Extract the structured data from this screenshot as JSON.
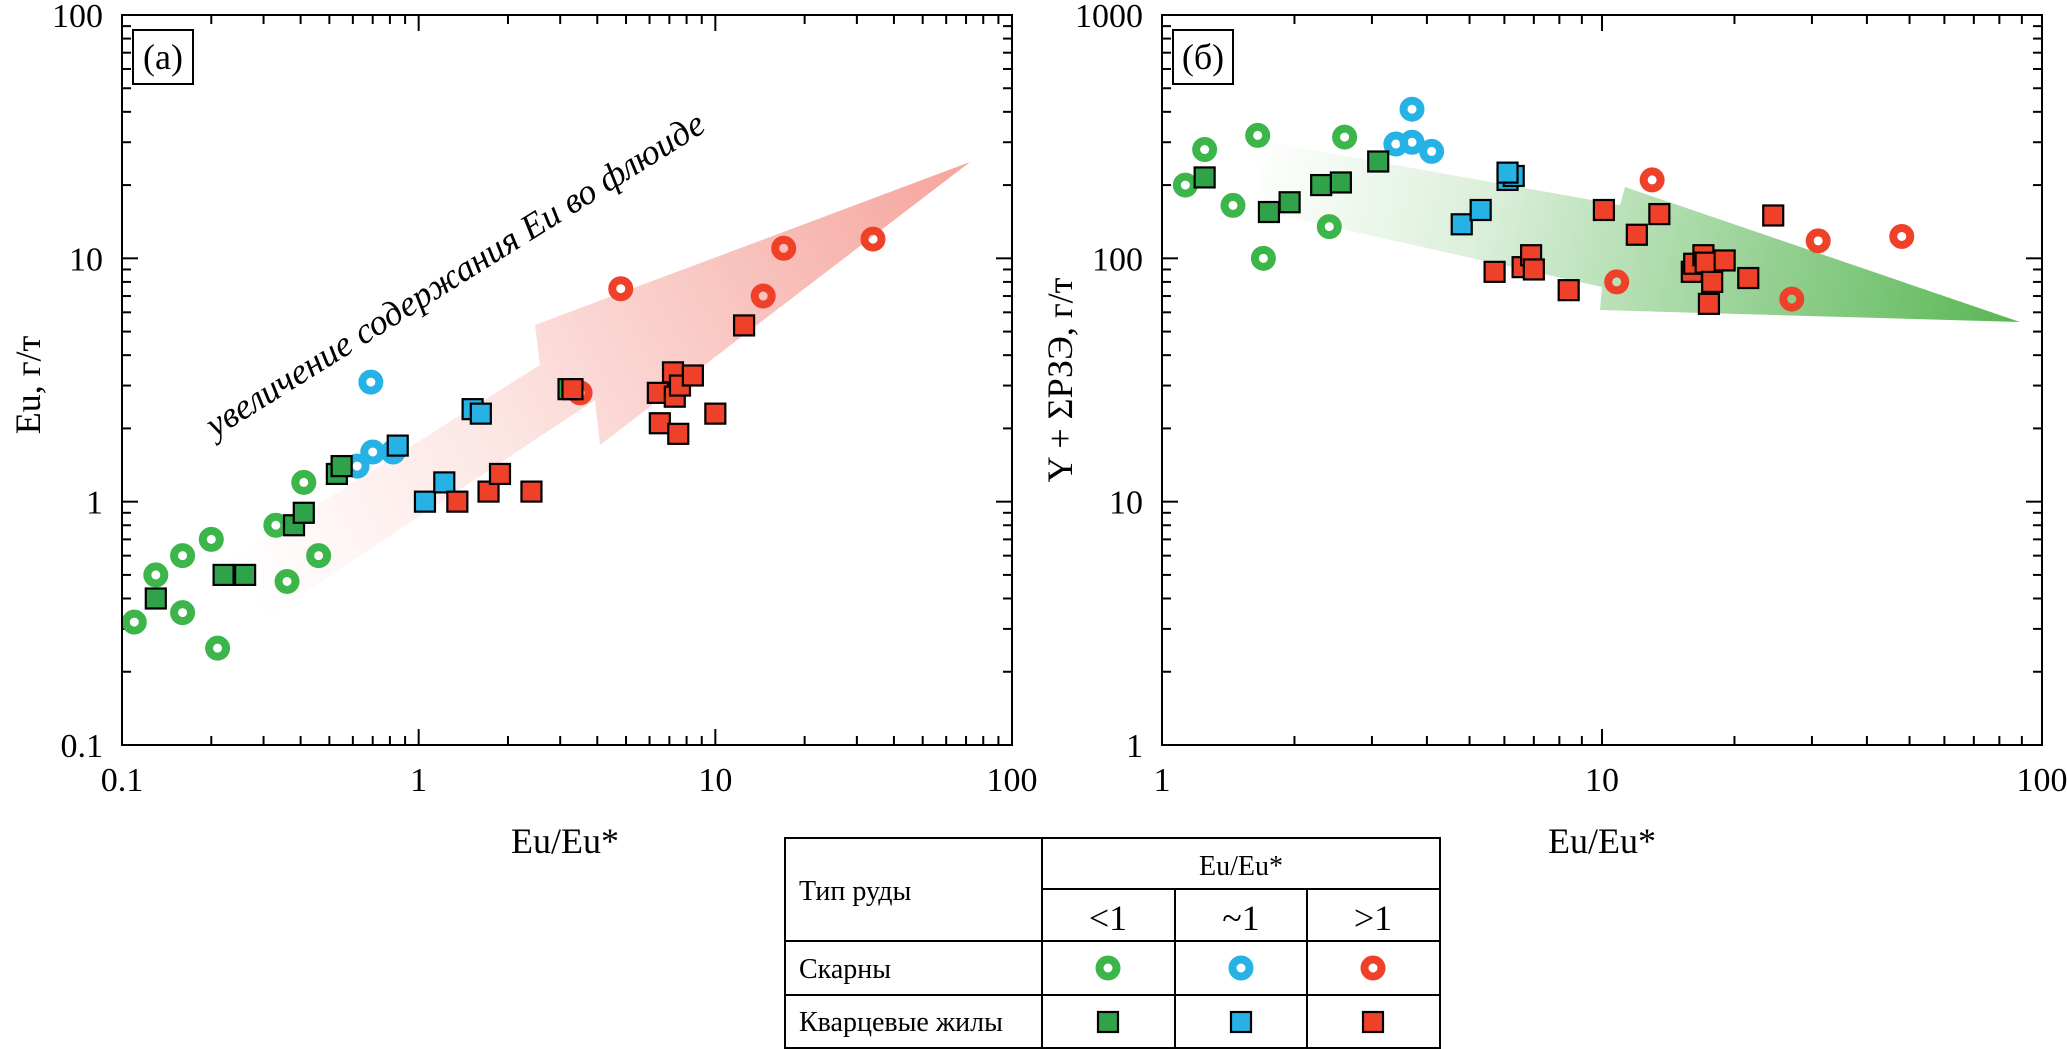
{
  "chart_data": [
    {
      "panel": "(а)",
      "type": "scatter",
      "xlabel": "Eu/Eu*",
      "ylabel": "Eu, г/т",
      "xscale": "log",
      "yscale": "log",
      "xlim": [
        0.1,
        100
      ],
      "ylim": [
        0.1,
        100
      ],
      "x_ticks": [
        "0.1",
        "1",
        "10",
        "100"
      ],
      "y_ticks": [
        "0.1",
        "1",
        "10",
        "100"
      ],
      "annotation": "увеличение содержания Eu во флюиде",
      "points": [
        {
          "x": 0.11,
          "y": 0.32,
          "g": "skarn-lt1"
        },
        {
          "x": 0.13,
          "y": 0.5,
          "g": "skarn-lt1"
        },
        {
          "x": 0.16,
          "y": 0.6,
          "g": "skarn-lt1"
        },
        {
          "x": 0.16,
          "y": 0.35,
          "g": "skarn-lt1"
        },
        {
          "x": 0.2,
          "y": 0.7,
          "g": "skarn-lt1"
        },
        {
          "x": 0.21,
          "y": 0.25,
          "g": "skarn-lt1"
        },
        {
          "x": 0.33,
          "y": 0.8,
          "g": "skarn-lt1"
        },
        {
          "x": 0.36,
          "y": 0.47,
          "g": "skarn-lt1"
        },
        {
          "x": 0.41,
          "y": 1.2,
          "g": "skarn-lt1"
        },
        {
          "x": 0.46,
          "y": 0.6,
          "g": "skarn-lt1"
        },
        {
          "x": 0.69,
          "y": 3.1,
          "g": "skarn-1"
        },
        {
          "x": 0.62,
          "y": 1.4,
          "g": "skarn-1"
        },
        {
          "x": 0.7,
          "y": 1.6,
          "g": "skarn-1"
        },
        {
          "x": 0.82,
          "y": 1.6,
          "g": "skarn-1"
        },
        {
          "x": 3.5,
          "y": 2.8,
          "g": "skarn-gt1"
        },
        {
          "x": 4.8,
          "y": 7.5,
          "g": "skarn-gt1"
        },
        {
          "x": 14.5,
          "y": 7,
          "g": "skarn-gt1"
        },
        {
          "x": 17,
          "y": 11,
          "g": "skarn-gt1"
        },
        {
          "x": 34,
          "y": 12,
          "g": "skarn-gt1"
        },
        {
          "x": 0.13,
          "y": 0.4,
          "g": "vein-lt1"
        },
        {
          "x": 0.22,
          "y": 0.5,
          "g": "vein-lt1"
        },
        {
          "x": 0.26,
          "y": 0.5,
          "g": "vein-lt1"
        },
        {
          "x": 0.38,
          "y": 0.8,
          "g": "vein-lt1"
        },
        {
          "x": 0.41,
          "y": 0.9,
          "g": "vein-lt1"
        },
        {
          "x": 0.53,
          "y": 1.3,
          "g": "vein-lt1"
        },
        {
          "x": 0.55,
          "y": 1.4,
          "g": "vein-lt1"
        },
        {
          "x": 3.2,
          "y": 2.9,
          "g": "vein-lt1"
        },
        {
          "x": 0.85,
          "y": 1.7,
          "g": "vein-1"
        },
        {
          "x": 1.05,
          "y": 1.0,
          "g": "vein-1"
        },
        {
          "x": 1.22,
          "y": 1.2,
          "g": "vein-1"
        },
        {
          "x": 1.52,
          "y": 2.4,
          "g": "vein-1"
        },
        {
          "x": 1.62,
          "y": 2.3,
          "g": "vein-1"
        },
        {
          "x": 1.35,
          "y": 1.0,
          "g": "vein-gt1"
        },
        {
          "x": 1.72,
          "y": 1.1,
          "g": "vein-gt1"
        },
        {
          "x": 1.88,
          "y": 1.3,
          "g": "vein-gt1"
        },
        {
          "x": 2.4,
          "y": 1.1,
          "g": "vein-gt1"
        },
        {
          "x": 3.3,
          "y": 2.9,
          "g": "vein-gt1"
        },
        {
          "x": 6.4,
          "y": 2.8,
          "g": "vein-gt1"
        },
        {
          "x": 6.5,
          "y": 2.1,
          "g": "vein-gt1"
        },
        {
          "x": 7.2,
          "y": 3.4,
          "g": "vein-gt1"
        },
        {
          "x": 7.3,
          "y": 2.7,
          "g": "vein-gt1"
        },
        {
          "x": 7.6,
          "y": 3.0,
          "g": "vein-gt1"
        },
        {
          "x": 7.5,
          "y": 1.9,
          "g": "vein-gt1"
        },
        {
          "x": 8.4,
          "y": 3.3,
          "g": "vein-gt1"
        },
        {
          "x": 10,
          "y": 2.3,
          "g": "vein-gt1"
        },
        {
          "x": 12.5,
          "y": 5.3,
          "g": "vein-gt1"
        }
      ]
    },
    {
      "panel": "(б)",
      "type": "scatter",
      "xlabel": "Eu/Eu*",
      "ylabel": "Y + ΣРЗЭ, г/т",
      "xscale": "log",
      "yscale": "log",
      "xlim": [
        1,
        100
      ],
      "ylim": [
        1,
        1000
      ],
      "x_ticks": [
        "1",
        "10",
        "100"
      ],
      "y_ticks": [
        "1",
        "10",
        "100",
        "1000"
      ],
      "points": [
        {
          "x": 1.13,
          "y": 200,
          "g": "skarn-lt1"
        },
        {
          "x": 1.25,
          "y": 280,
          "g": "skarn-lt1"
        },
        {
          "x": 1.45,
          "y": 165,
          "g": "skarn-lt1"
        },
        {
          "x": 1.65,
          "y": 320,
          "g": "skarn-lt1"
        },
        {
          "x": 1.7,
          "y": 100,
          "g": "skarn-lt1"
        },
        {
          "x": 2.4,
          "y": 135,
          "g": "skarn-lt1"
        },
        {
          "x": 2.6,
          "y": 315,
          "g": "skarn-lt1"
        },
        {
          "x": 3.4,
          "y": 295,
          "g": "skarn-1"
        },
        {
          "x": 3.7,
          "y": 300,
          "g": "skarn-1"
        },
        {
          "x": 3.7,
          "y": 410,
          "g": "skarn-1"
        },
        {
          "x": 4.1,
          "y": 275,
          "g": "skarn-1"
        },
        {
          "x": 10.8,
          "y": 80,
          "g": "skarn-gt1"
        },
        {
          "x": 13,
          "y": 210,
          "g": "skarn-gt1"
        },
        {
          "x": 27,
          "y": 68,
          "g": "skarn-gt1"
        },
        {
          "x": 31,
          "y": 118,
          "g": "skarn-gt1"
        },
        {
          "x": 48,
          "y": 123,
          "g": "skarn-gt1"
        },
        {
          "x": 1.25,
          "y": 215,
          "g": "vein-lt1"
        },
        {
          "x": 1.75,
          "y": 155,
          "g": "vein-lt1"
        },
        {
          "x": 1.95,
          "y": 170,
          "g": "vein-lt1"
        },
        {
          "x": 2.3,
          "y": 200,
          "g": "vein-lt1"
        },
        {
          "x": 2.55,
          "y": 205,
          "g": "vein-lt1"
        },
        {
          "x": 3.1,
          "y": 250,
          "g": "vein-lt1"
        },
        {
          "x": 4.8,
          "y": 138,
          "g": "vein-1"
        },
        {
          "x": 5.3,
          "y": 158,
          "g": "vein-1"
        },
        {
          "x": 6.1,
          "y": 210,
          "g": "vein-1"
        },
        {
          "x": 6.3,
          "y": 218,
          "g": "vein-1"
        },
        {
          "x": 6.1,
          "y": 225,
          "g": "vein-1"
        },
        {
          "x": 5.7,
          "y": 88,
          "g": "vein-gt1"
        },
        {
          "x": 6.6,
          "y": 92,
          "g": "vein-gt1"
        },
        {
          "x": 6.9,
          "y": 103,
          "g": "vein-gt1"
        },
        {
          "x": 7.0,
          "y": 90,
          "g": "vein-gt1"
        },
        {
          "x": 8.4,
          "y": 74,
          "g": "vein-gt1"
        },
        {
          "x": 10.1,
          "y": 158,
          "g": "vein-gt1"
        },
        {
          "x": 12,
          "y": 125,
          "g": "vein-gt1"
        },
        {
          "x": 13.5,
          "y": 152,
          "g": "vein-gt1"
        },
        {
          "x": 16,
          "y": 88,
          "g": "vein-gt1"
        },
        {
          "x": 16.2,
          "y": 95,
          "g": "vein-gt1"
        },
        {
          "x": 17,
          "y": 103,
          "g": "vein-gt1"
        },
        {
          "x": 17.2,
          "y": 96,
          "g": "vein-gt1"
        },
        {
          "x": 17.8,
          "y": 80,
          "g": "vein-gt1"
        },
        {
          "x": 17.5,
          "y": 65,
          "g": "vein-gt1"
        },
        {
          "x": 19,
          "y": 98,
          "g": "vein-gt1"
        },
        {
          "x": 21.5,
          "y": 83,
          "g": "vein-gt1"
        },
        {
          "x": 24.5,
          "y": 150,
          "g": "vein-gt1"
        }
      ]
    }
  ],
  "legend": {
    "header_type": "Тип руды",
    "header_ratio": "Eu/Eu*",
    "columns": [
      "<1",
      "~1",
      ">1"
    ],
    "rows": [
      "Скарны",
      "Кварцевые жилы"
    ]
  },
  "colors": {
    "green": "#3cb54a",
    "blue": "#27b2e6",
    "red": "#ef4129",
    "green_vein": "#2fa24a",
    "arrow_red": "#f07468",
    "arrow_green": "#4fb24a"
  }
}
